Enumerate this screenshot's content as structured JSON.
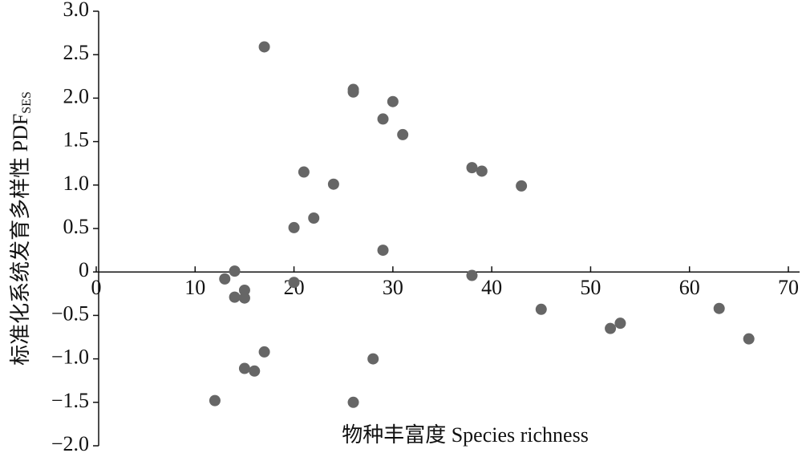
{
  "chart_data": {
    "type": "scatter",
    "ylabel": "标准化系统发育多样性 PDF",
    "ylabel_subscript": "SES",
    "xlabel": "物种丰富度 Species richness",
    "color": "#666666",
    "xlim": [
      0,
      70
    ],
    "xticks": [
      0,
      10,
      20,
      30,
      40,
      50,
      60,
      70
    ],
    "ylim": [
      -2,
      3
    ],
    "yticks": [
      {
        "value": 3,
        "label": "3.0"
      },
      {
        "value": 2.5,
        "label": "2.5"
      },
      {
        "value": 2,
        "label": "2.0"
      },
      {
        "value": 1.5,
        "label": "1.5"
      },
      {
        "value": 1,
        "label": "1.0"
      },
      {
        "value": 0.5,
        "label": "0.5"
      },
      0,
      {
        "value": -0.5,
        "label": "−0.5"
      },
      {
        "value": -1,
        "label": "−1.0"
      },
      {
        "value": -1.5,
        "label": "−1.5"
      },
      {
        "value": -2,
        "label": "−2.0"
      }
    ],
    "x": [
      12,
      13,
      14,
      14,
      15,
      15,
      15,
      16,
      17,
      17,
      20,
      20,
      21,
      22,
      24,
      26,
      26,
      26,
      28,
      29,
      29,
      30,
      31,
      38,
      38,
      39,
      43,
      45,
      52,
      53,
      63,
      66
    ],
    "y": [
      -1.48,
      -0.08,
      0.01,
      -0.29,
      -0.21,
      -0.3,
      -1.11,
      -1.14,
      -0.92,
      2.59,
      0.51,
      -0.12,
      1.15,
      0.62,
      1.01,
      2.1,
      2.07,
      -1.5,
      -1.0,
      1.76,
      0.25,
      1.96,
      1.58,
      1.2,
      -0.04,
      1.16,
      0.99,
      -0.43,
      -0.65,
      -0.59,
      -0.42,
      -0.77
    ]
  }
}
